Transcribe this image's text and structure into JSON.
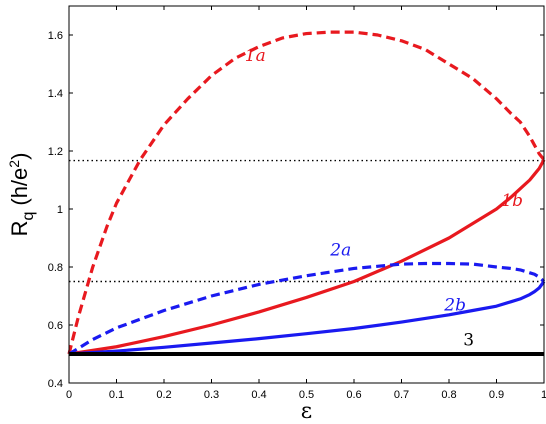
{
  "chart_data": {
    "type": "line",
    "xlabel": "ε",
    "ylabel_main": "R",
    "ylabel_sub": "q",
    "ylabel_unit": "(h/e",
    "ylabel_unit_sup": "2",
    "ylabel_unit_close": ")",
    "xlim": [
      0,
      1
    ],
    "ylim": [
      0.4,
      1.7
    ],
    "x_ticks": [
      0,
      0.1,
      0.2,
      0.3,
      0.4,
      0.5,
      0.6,
      0.7,
      0.8,
      0.9,
      1
    ],
    "x_tick_labels": [
      "0",
      "0.1",
      "0.2",
      "0.3",
      "0.4",
      "0.5",
      "0.6",
      "0.7",
      "0.8",
      "0.9",
      "1"
    ],
    "y_ticks": [
      0.4,
      0.6,
      0.8,
      1.0,
      1.2,
      1.4,
      1.6
    ],
    "y_tick_labels": [
      "0.4",
      "0.6",
      "0.8",
      "1",
      "1.2",
      "1.4",
      "1.6"
    ],
    "grid": false,
    "reference_lines": [
      {
        "y": 1.167,
        "style": "dotted",
        "color": "#000000"
      },
      {
        "y": 0.75,
        "style": "dotted",
        "color": "#000000"
      }
    ],
    "series": [
      {
        "label": "1a",
        "color": "#e8191f",
        "style": "dashed",
        "x": [
          0,
          0.02,
          0.05,
          0.08,
          0.1,
          0.15,
          0.2,
          0.25,
          0.3,
          0.35,
          0.4,
          0.45,
          0.5,
          0.55,
          0.6,
          0.65,
          0.7,
          0.75,
          0.8,
          0.85,
          0.9,
          0.93,
          0.95,
          0.97,
          0.98,
          0.99,
          1.0
        ],
        "y": [
          0.5,
          0.63,
          0.8,
          0.94,
          1.02,
          1.17,
          1.29,
          1.38,
          1.46,
          1.52,
          1.56,
          1.59,
          1.605,
          1.61,
          1.61,
          1.6,
          1.58,
          1.55,
          1.5,
          1.45,
          1.38,
          1.33,
          1.3,
          1.25,
          1.22,
          1.19,
          1.17
        ]
      },
      {
        "label": "1b",
        "color": "#e8191f",
        "style": "solid",
        "x": [
          0,
          0.1,
          0.2,
          0.3,
          0.4,
          0.5,
          0.6,
          0.7,
          0.8,
          0.85,
          0.9,
          0.93,
          0.95,
          0.97,
          0.98,
          0.99,
          1.0
        ],
        "y": [
          0.5,
          0.525,
          0.56,
          0.6,
          0.645,
          0.695,
          0.75,
          0.82,
          0.9,
          0.95,
          1.0,
          1.04,
          1.07,
          1.1,
          1.12,
          1.14,
          1.17
        ]
      },
      {
        "label": "2a",
        "color": "#1a1af0",
        "style": "dashed",
        "x": [
          0,
          0.05,
          0.1,
          0.2,
          0.3,
          0.4,
          0.5,
          0.6,
          0.7,
          0.75,
          0.8,
          0.85,
          0.9,
          0.93,
          0.95,
          0.97,
          0.98,
          0.99,
          1.0
        ],
        "y": [
          0.5,
          0.55,
          0.59,
          0.65,
          0.7,
          0.74,
          0.77,
          0.795,
          0.81,
          0.812,
          0.812,
          0.81,
          0.8,
          0.795,
          0.79,
          0.78,
          0.775,
          0.765,
          0.75
        ]
      },
      {
        "label": "2b",
        "color": "#1a1af0",
        "style": "solid",
        "x": [
          0,
          0.1,
          0.2,
          0.3,
          0.4,
          0.5,
          0.6,
          0.7,
          0.8,
          0.85,
          0.9,
          0.93,
          0.95,
          0.97,
          0.98,
          0.99,
          1.0
        ],
        "y": [
          0.5,
          0.51,
          0.523,
          0.538,
          0.553,
          0.57,
          0.588,
          0.61,
          0.635,
          0.65,
          0.665,
          0.68,
          0.69,
          0.705,
          0.715,
          0.728,
          0.75
        ]
      },
      {
        "label": "3",
        "color": "#000000",
        "style": "solid",
        "x": [
          0,
          1
        ],
        "y": [
          0.5,
          0.5
        ]
      }
    ],
    "annotations": [
      {
        "text": "1a",
        "x": 0.37,
        "y": 1.51,
        "color": "#e8191f",
        "italic": true
      },
      {
        "text": "1b",
        "x": 0.91,
        "y": 1.01,
        "color": "#e8191f",
        "italic": true
      },
      {
        "text": "2a",
        "x": 0.55,
        "y": 0.84,
        "color": "#1a1af0",
        "italic": true
      },
      {
        "text": "2b",
        "x": 0.79,
        "y": 0.65,
        "color": "#1a1af0",
        "italic": true
      },
      {
        "text": "3",
        "x": 0.83,
        "y": 0.53,
        "color": "#000000",
        "italic": false
      }
    ]
  }
}
